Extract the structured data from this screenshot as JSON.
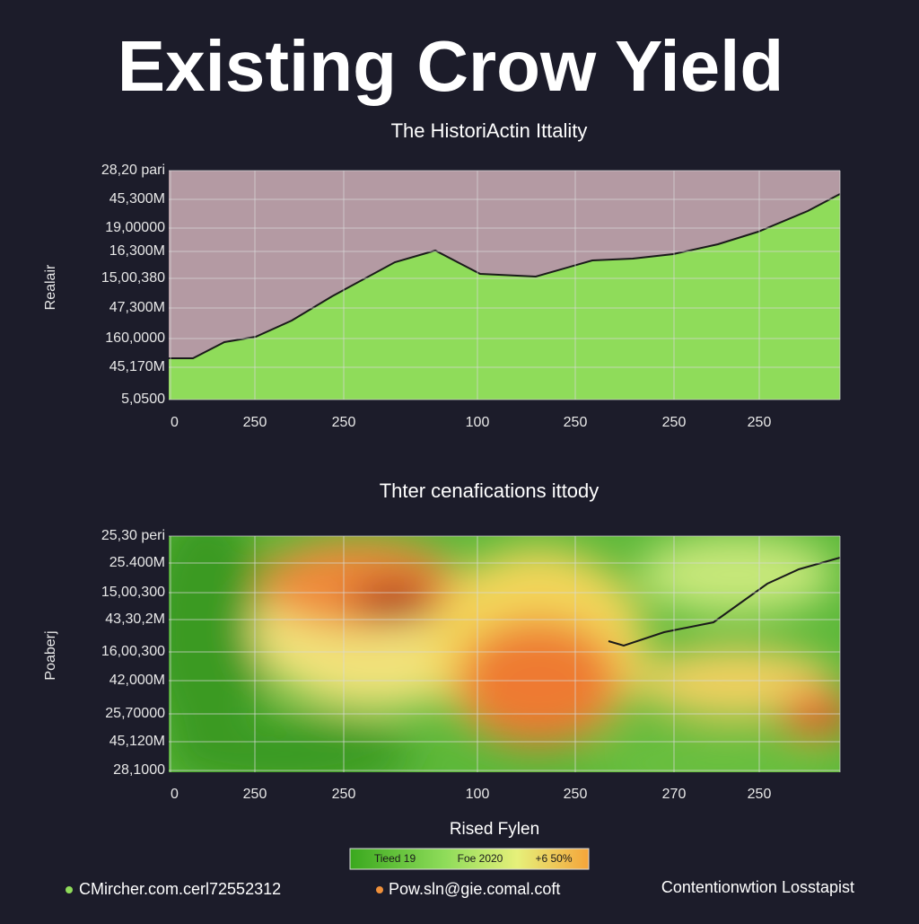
{
  "title": "Existing Crow Yield",
  "subtitle": "The HistoriActin Ittality",
  "charts": [
    {
      "y_axis_title": "Realair",
      "y_labels": [
        "28,20 pari",
        "45,300M",
        "19,00000",
        "16,300M",
        "15,00,380",
        "47,300M",
        "160,0000",
        "45,170M",
        "5,0500"
      ],
      "x_labels": [
        "0",
        "250",
        "250",
        "100",
        "250",
        "250",
        "250"
      ]
    },
    {
      "title": "Thter cenafications ittody",
      "y_axis_title": "Poaberj",
      "y_labels": [
        "25,30 peri",
        "25.400M",
        "15,00,300",
        "43,30,2M",
        "16,00,300",
        "42,000M",
        "25,70000",
        "45,120M",
        "28,1000"
      ],
      "x_labels": [
        "0",
        "250",
        "250",
        "100",
        "250",
        "270",
        "250"
      ],
      "x_axis_title": "Rised Fylen"
    }
  ],
  "legend": [
    "Tieed 19",
    "Foe 2020",
    "+6 50%"
  ],
  "footer": [
    "CMircher.com.cerl72552312",
    "Pow.sln@gie.comal.coft",
    "Contentionwtion Losstapist"
  ]
}
